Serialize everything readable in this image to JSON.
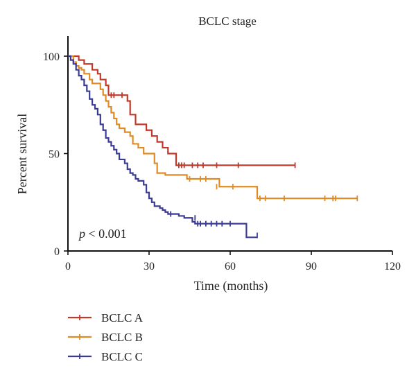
{
  "chart_data": {
    "type": "line",
    "title": "BCLC stage",
    "xlabel": "Time (months)",
    "ylabel": "Percent survival",
    "xlim": [
      0,
      120
    ],
    "ylim": [
      0,
      100
    ],
    "xticks": [
      0,
      30,
      60,
      90,
      120
    ],
    "yticks": [
      0,
      50,
      100
    ],
    "annotation": {
      "italic": "p",
      "text": " < 0.001"
    },
    "legend_position": "bottom-left",
    "series": [
      {
        "name": "BCLC A",
        "color": "#c0392b",
        "steps": [
          [
            0,
            100
          ],
          [
            4,
            98
          ],
          [
            6,
            96
          ],
          [
            9,
            93
          ],
          [
            11,
            91
          ],
          [
            12,
            88
          ],
          [
            14,
            85
          ],
          [
            15,
            80
          ],
          [
            18,
            80
          ],
          [
            19,
            80
          ],
          [
            20,
            80
          ],
          [
            22,
            77
          ],
          [
            23,
            70
          ],
          [
            25,
            65
          ],
          [
            29,
            62
          ],
          [
            31,
            59
          ],
          [
            33,
            56
          ],
          [
            35,
            53
          ],
          [
            37,
            50
          ],
          [
            39,
            50
          ],
          [
            40,
            44
          ],
          [
            84,
            44
          ]
        ],
        "censors": [
          [
            16,
            80
          ],
          [
            17,
            80
          ],
          [
            20,
            80
          ],
          [
            41,
            44
          ],
          [
            42,
            44
          ],
          [
            43,
            44
          ],
          [
            46,
            44
          ],
          [
            48,
            44
          ],
          [
            50,
            44
          ],
          [
            55,
            44
          ],
          [
            63,
            44
          ],
          [
            84,
            44
          ]
        ]
      },
      {
        "name": "BCLC B",
        "color": "#e08a24",
        "steps": [
          [
            0,
            100
          ],
          [
            2,
            97
          ],
          [
            3,
            95
          ],
          [
            4,
            94
          ],
          [
            5,
            93
          ],
          [
            6,
            91
          ],
          [
            8,
            88
          ],
          [
            9,
            86
          ],
          [
            12,
            83
          ],
          [
            13,
            80
          ],
          [
            14,
            77
          ],
          [
            15,
            74
          ],
          [
            16,
            71
          ],
          [
            17,
            68
          ],
          [
            18,
            65
          ],
          [
            19,
            63
          ],
          [
            21,
            61
          ],
          [
            23,
            59
          ],
          [
            24,
            55
          ],
          [
            26,
            53
          ],
          [
            28,
            50
          ],
          [
            31,
            50
          ],
          [
            32,
            45
          ],
          [
            33,
            40
          ],
          [
            36,
            39
          ],
          [
            43,
            39
          ],
          [
            44,
            37
          ],
          [
            55,
            37
          ],
          [
            56,
            33
          ],
          [
            69,
            33
          ],
          [
            70,
            27
          ],
          [
            107,
            27
          ]
        ],
        "censors": [
          [
            45,
            37
          ],
          [
            49,
            37
          ],
          [
            51,
            37
          ],
          [
            55,
            33
          ],
          [
            61,
            33
          ],
          [
            71,
            27
          ],
          [
            73,
            27
          ],
          [
            80,
            27
          ],
          [
            95,
            27
          ],
          [
            98,
            27
          ],
          [
            99,
            27
          ],
          [
            107,
            27
          ]
        ]
      },
      {
        "name": "BCLC C",
        "color": "#3b3b95",
        "steps": [
          [
            0,
            100
          ],
          [
            1,
            98
          ],
          [
            2,
            96
          ],
          [
            3,
            93
          ],
          [
            4,
            90
          ],
          [
            5,
            88
          ],
          [
            6,
            85
          ],
          [
            7,
            82
          ],
          [
            8,
            78
          ],
          [
            9,
            75
          ],
          [
            10,
            73
          ],
          [
            11,
            70
          ],
          [
            12,
            65
          ],
          [
            13,
            62
          ],
          [
            14,
            58
          ],
          [
            15,
            56
          ],
          [
            16,
            54
          ],
          [
            17,
            52
          ],
          [
            18,
            50
          ],
          [
            19,
            47
          ],
          [
            21,
            45
          ],
          [
            22,
            42
          ],
          [
            23,
            40
          ],
          [
            24,
            39
          ],
          [
            25,
            37
          ],
          [
            26,
            36
          ],
          [
            28,
            34
          ],
          [
            29,
            30
          ],
          [
            30,
            27
          ],
          [
            31,
            25
          ],
          [
            32,
            23
          ],
          [
            34,
            22
          ],
          [
            35,
            21
          ],
          [
            36,
            20
          ],
          [
            37,
            19
          ],
          [
            40,
            19
          ],
          [
            41,
            18
          ],
          [
            43,
            17
          ],
          [
            46,
            15
          ],
          [
            47,
            14
          ],
          [
            57,
            14
          ],
          [
            66,
            7
          ],
          [
            70,
            7
          ]
        ],
        "censors": [
          [
            38,
            19
          ],
          [
            47,
            17
          ],
          [
            48,
            14
          ],
          [
            49,
            14
          ],
          [
            51,
            14
          ],
          [
            53,
            14
          ],
          [
            55,
            14
          ],
          [
            57,
            14
          ],
          [
            60,
            14
          ],
          [
            70,
            8
          ]
        ]
      }
    ]
  }
}
